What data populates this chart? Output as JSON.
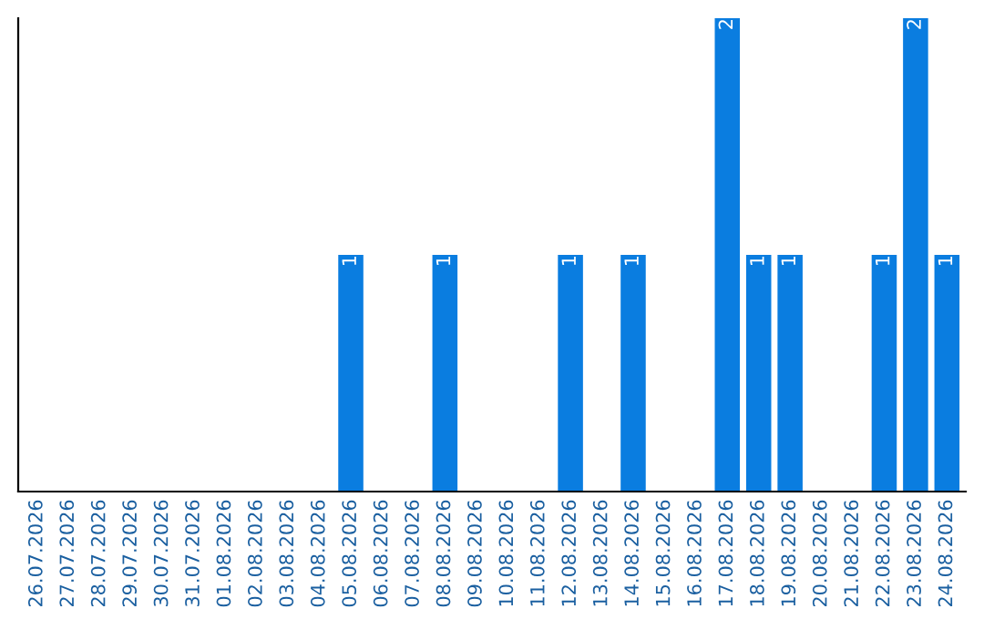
{
  "chart_data": {
    "type": "bar",
    "categories": [
      "26.07.2026",
      "27.07.2026",
      "28.07.2026",
      "29.07.2026",
      "30.07.2026",
      "31.07.2026",
      "01.08.2026",
      "02.08.2026",
      "03.08.2026",
      "04.08.2026",
      "05.08.2026",
      "06.08.2026",
      "07.08.2026",
      "08.08.2026",
      "09.08.2026",
      "10.08.2026",
      "11.08.2026",
      "12.08.2026",
      "13.08.2026",
      "14.08.2026",
      "15.08.2026",
      "16.08.2026",
      "17.08.2026",
      "18.08.2026",
      "19.08.2026",
      "20.08.2026",
      "21.08.2026",
      "22.08.2026",
      "23.08.2026",
      "24.08.2026"
    ],
    "values": [
      0,
      0,
      0,
      0,
      0,
      0,
      0,
      0,
      0,
      0,
      1,
      0,
      0,
      1,
      0,
      0,
      0,
      1,
      0,
      1,
      0,
      0,
      2,
      1,
      1,
      0,
      0,
      1,
      2,
      1
    ],
    "value_labels": [
      null,
      null,
      null,
      null,
      null,
      null,
      null,
      null,
      null,
      null,
      "1",
      null,
      null,
      "1",
      null,
      null,
      null,
      "1",
      null,
      "1",
      null,
      null,
      "2",
      "1",
      "1",
      null,
      null,
      "1",
      "2",
      "1"
    ],
    "color": "#0a7de0",
    "tick_labels": "x",
    "grid": false,
    "legend": false
  }
}
